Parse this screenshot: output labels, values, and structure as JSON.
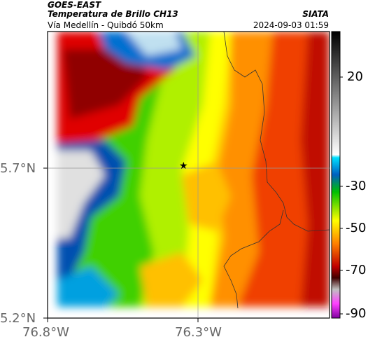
{
  "header": {
    "title_line1": "GOES-EAST",
    "title_line2": "Temperatura de Brillo CH13",
    "subtitle": "Vía Medellín - Quibdó 50km",
    "source": "SIATA",
    "datetime": "2024-09-03 01:59"
  },
  "axes": {
    "lat_ticks": [
      "5.7°N",
      "5.2°N"
    ],
    "lon_ticks": [
      "76.8°W",
      "76.3°W"
    ]
  },
  "colorbar": {
    "tick_labels": [
      "20",
      "-30",
      "-50",
      "-70",
      "-90"
    ],
    "colors": [
      "#000000",
      "#ffffff",
      "#00c0e0",
      "#00a000",
      "#ffff00",
      "#ff0000",
      "#800000",
      "#ff00ff"
    ]
  },
  "marker": {
    "symbol": "★"
  }
}
